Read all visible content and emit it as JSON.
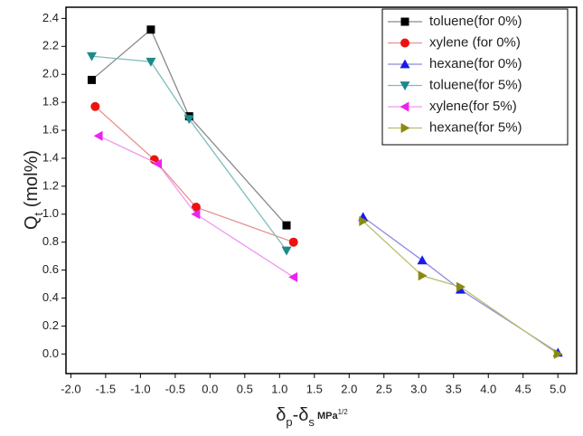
{
  "chart_data": {
    "type": "line",
    "ylabel_parts": [
      {
        "text": "Q"
      },
      {
        "text": "t",
        "style": "sub"
      },
      {
        "text": " (mol%)"
      }
    ],
    "xlabel_parts": [
      {
        "text": "δ"
      },
      {
        "text": "p",
        "style": "sub"
      },
      {
        "text": "-δ"
      },
      {
        "text": "s",
        "style": "sub"
      },
      {
        "text": " MPa",
        "style": "small"
      },
      {
        "text": "1/2",
        "style": "sup"
      }
    ],
    "xlim": [
      -2.07,
      5.27
    ],
    "ylim": [
      -0.14,
      2.48
    ],
    "xticks": [
      {
        "value": -2,
        "label": "-2.0"
      },
      -1.5,
      {
        "value": -1,
        "label": "-1.0"
      },
      -0.5,
      {
        "value": 0,
        "label": "0.0"
      },
      0.5,
      {
        "value": 1,
        "label": "1.0"
      },
      1.5,
      {
        "value": 2,
        "label": "2.0"
      },
      2.5,
      {
        "value": 3,
        "label": "3.0"
      },
      3.5,
      {
        "value": 4,
        "label": "4.0"
      },
      4.5,
      {
        "value": 5,
        "label": "5.0"
      }
    ],
    "yticks": [
      {
        "value": 0,
        "label": "0.0"
      },
      0.2,
      0.4,
      0.6,
      0.8,
      {
        "value": 1,
        "label": "1.0"
      },
      1.2,
      1.4,
      1.6,
      1.8,
      {
        "value": 2,
        "label": "2.0"
      },
      2.2,
      2.4
    ],
    "grid": false,
    "legend": "upper right",
    "series": [
      {
        "name": "toluene(for 0%)",
        "color": "#000000",
        "line_color": "#8a8a8a",
        "marker": "square",
        "x": [
          -1.7,
          -0.85,
          -0.3,
          1.1
        ],
        "values": [
          1.96,
          2.32,
          1.7,
          0.92
        ]
      },
      {
        "name": "xylene (for 0%)",
        "color": "#ee1111",
        "line_color": "#e89090",
        "marker": "circle",
        "x": [
          -1.65,
          -0.8,
          -0.2,
          1.2
        ],
        "values": [
          1.77,
          1.39,
          1.05,
          0.8
        ]
      },
      {
        "name": "hexane(for 0%)",
        "color": "#1a1aee",
        "line_color": "#8c8ce0",
        "marker": "triangle-up",
        "x": [
          2.2,
          3.05,
          3.6,
          5.0
        ],
        "values": [
          0.98,
          0.67,
          0.46,
          0.01
        ]
      },
      {
        "name": "toluene(for 5%)",
        "color": "#1a8a8a",
        "line_color": "#80bcbc",
        "marker": "triangle-down",
        "x": [
          -1.7,
          -0.85,
          -0.3,
          1.1
        ],
        "values": [
          2.13,
          2.09,
          1.68,
          0.74
        ]
      },
      {
        "name": "xylene(for 5%)",
        "color": "#ee22ee",
        "line_color": "#ee99ee",
        "marker": "triangle-left",
        "x": [
          -1.6,
          -0.75,
          -0.2,
          1.2
        ],
        "values": [
          1.56,
          1.36,
          1.0,
          0.55
        ]
      },
      {
        "name": "hexane(for 5%)",
        "color": "#8a8a10",
        "line_color": "#bcbc70",
        "marker": "triangle-right",
        "x": [
          2.2,
          3.05,
          3.6,
          5.0
        ],
        "values": [
          0.95,
          0.56,
          0.48,
          0.0
        ]
      }
    ]
  }
}
